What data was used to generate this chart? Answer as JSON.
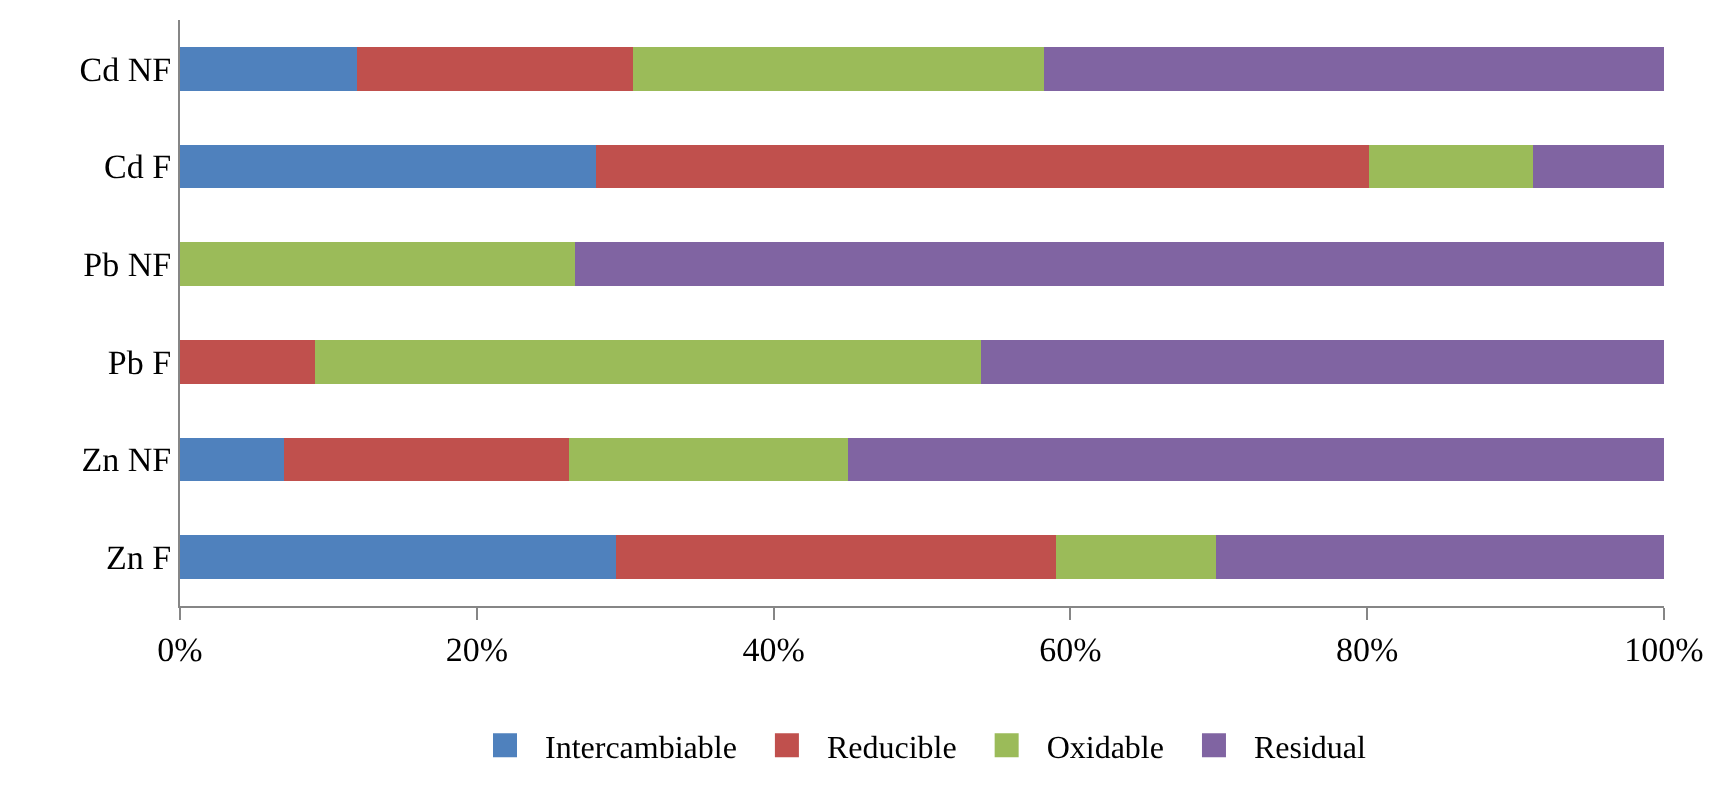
{
  "chart_data": {
    "type": "bar",
    "orientation": "horizontal",
    "stacked": true,
    "categories": [
      "Cd NF",
      "Cd F",
      "Pb NF",
      "Pb F",
      "Zn NF",
      "Zn F"
    ],
    "series": [
      {
        "name": "Intercambiable",
        "color": "#4f81bd",
        "values": [
          11.9,
          28.0,
          0,
          0,
          7.0,
          29.4
        ]
      },
      {
        "name": "Reducible",
        "color": "#c0504d",
        "values": [
          18.6,
          52.1,
          0,
          9.1,
          19.2,
          29.6
        ]
      },
      {
        "name": "Oxidable",
        "color": "#9bbb59",
        "values": [
          27.7,
          11.1,
          26.6,
          44.9,
          18.8,
          10.8
        ]
      },
      {
        "name": "Residual",
        "color": "#8064a2",
        "values": [
          41.8,
          8.8,
          73.4,
          46.0,
          55.0,
          30.2
        ]
      }
    ],
    "xlim": [
      0,
      100
    ],
    "xticks": [
      {
        "value": 0,
        "label": "0%"
      },
      {
        "value": 20,
        "label": "20%"
      },
      {
        "value": 40,
        "label": "40%"
      },
      {
        "value": 60,
        "label": "60%"
      },
      {
        "value": 80,
        "label": "80%"
      },
      {
        "value": 100,
        "label": "100%"
      }
    ],
    "grid": false,
    "legend": "bottom"
  }
}
